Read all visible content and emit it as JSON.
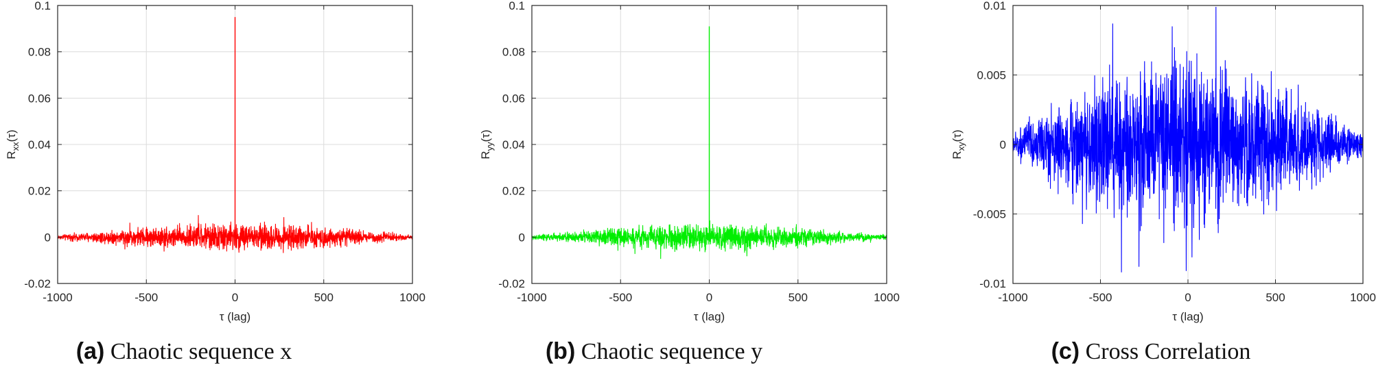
{
  "panels": [
    {
      "caption_tag": "(a)",
      "caption_text": "Chaotic sequence x",
      "chart_data_index": 0
    },
    {
      "caption_tag": "(b)",
      "caption_text": "Chaotic sequence y",
      "chart_data_index": 1
    },
    {
      "caption_tag": "(c)",
      "caption_text": "Cross Correlation",
      "chart_data_index": 2
    }
  ],
  "chart_data": [
    {
      "type": "line",
      "title": "",
      "xlabel": "τ (lag)",
      "ylabel": "Rxx(τ)",
      "ylabel_main": "R",
      "ylabel_sub": "xx",
      "ylabel_arg": "(τ)",
      "xlim": [
        -1000,
        1000
      ],
      "ylim": [
        -0.02,
        0.1
      ],
      "xticks": [
        -1000,
        -500,
        0,
        500,
        1000
      ],
      "yticks": [
        -0.02,
        0,
        0.02,
        0.04,
        0.06,
        0.08,
        0.1
      ],
      "ytick_labels": [
        "-0.02",
        "0",
        "0.02",
        "0.04",
        "0.06",
        "0.08",
        "0.1"
      ],
      "grid": true,
      "color": "#ff0000",
      "series": [
        {
          "peak": {
            "x": 0,
            "y": 0.095
          },
          "noise_envelope": [
            {
              "x": -1000,
              "amp": 0.0008
            },
            {
              "x": -500,
              "amp": 0.0035
            },
            {
              "x": 0,
              "amp": 0.005
            },
            {
              "x": 500,
              "amp": 0.0035
            },
            {
              "x": 1000,
              "amp": 0.0008
            }
          ]
        }
      ]
    },
    {
      "type": "line",
      "title": "",
      "xlabel": "τ (lag)",
      "ylabel": "Ryy(τ)",
      "ylabel_main": "R",
      "ylabel_sub": "yy",
      "ylabel_arg": "(τ)",
      "xlim": [
        -1000,
        1000
      ],
      "ylim": [
        -0.02,
        0.1
      ],
      "xticks": [
        -1000,
        -500,
        0,
        500,
        1000
      ],
      "yticks": [
        -0.02,
        0,
        0.02,
        0.04,
        0.06,
        0.08,
        0.1
      ],
      "ytick_labels": [
        "-0.02",
        "0",
        "0.02",
        "0.04",
        "0.06",
        "0.08",
        "0.1"
      ],
      "grid": true,
      "color": "#00ee00",
      "series": [
        {
          "peak": {
            "x": 0,
            "y": 0.091
          },
          "noise_envelope": [
            {
              "x": -1000,
              "amp": 0.0008
            },
            {
              "x": -500,
              "amp": 0.0033
            },
            {
              "x": 0,
              "amp": 0.0048
            },
            {
              "x": 500,
              "amp": 0.0033
            },
            {
              "x": 1000,
              "amp": 0.0008
            }
          ]
        }
      ]
    },
    {
      "type": "line",
      "title": "",
      "xlabel": "τ (lag)",
      "ylabel": "Rxy(τ)",
      "ylabel_main": "R",
      "ylabel_sub": "xy",
      "ylabel_arg": "(τ)",
      "xlim": [
        -1000,
        1000
      ],
      "ylim": [
        -0.01,
        0.01
      ],
      "xticks": [
        -1000,
        -500,
        0,
        500,
        1000
      ],
      "yticks": [
        -0.01,
        -0.005,
        0,
        0.005,
        0.01
      ],
      "ytick_labels": [
        "-0.01",
        "-0.005",
        "0",
        "0.005",
        "0.01"
      ],
      "grid": true,
      "color": "#0000ff",
      "series": [
        {
          "peak": null,
          "extremes": [
            {
              "x": 160,
              "y": 0.0099
            },
            {
              "x": -380,
              "y": -0.0092
            },
            {
              "x": -10,
              "y": -0.0091
            },
            {
              "x": -280,
              "y": -0.0088
            },
            {
              "x": -430,
              "y": 0.0087
            },
            {
              "x": -90,
              "y": 0.0085
            }
          ],
          "noise_envelope": [
            {
              "x": -1000,
              "amp": 0.0007
            },
            {
              "x": -500,
              "amp": 0.0035
            },
            {
              "x": 0,
              "amp": 0.0052
            },
            {
              "x": 500,
              "amp": 0.0035
            },
            {
              "x": 1000,
              "amp": 0.0007
            }
          ]
        }
      ]
    }
  ]
}
